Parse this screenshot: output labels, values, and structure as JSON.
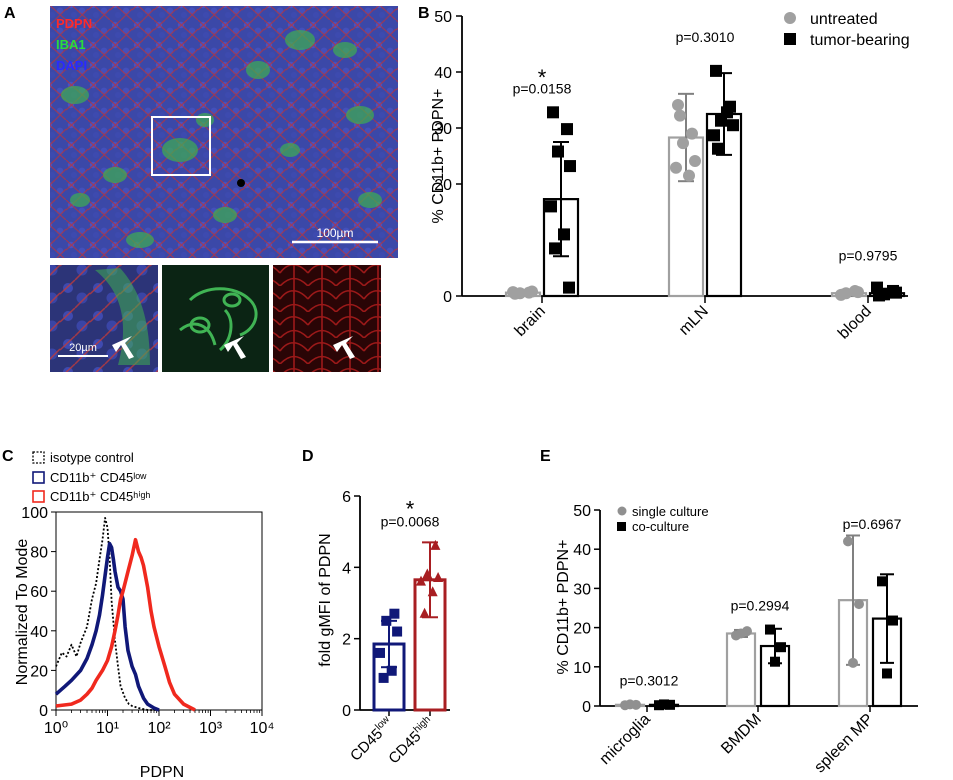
{
  "panels": {
    "A": {
      "letter": "A",
      "legend": [
        {
          "text": "PDPN",
          "color": "#ff2a2a"
        },
        {
          "text": "IBA1",
          "color": "#2bdc3b"
        },
        {
          "text": "DAPI",
          "color": "#2a2aff"
        }
      ],
      "scalebar_main": "100µm",
      "scalebar_inset": "20µm",
      "image_colors": {
        "nuclei": "#3b48a8",
        "membrane": "#b8333a",
        "microglia": "#3fae52",
        "inset_green_bg": "#0b2414",
        "inset_red_bg": "#2a0506"
      }
    },
    "B": {
      "letter": "B"
    },
    "C": {
      "letter": "C"
    },
    "D": {
      "letter": "D"
    },
    "E": {
      "letter": "E"
    }
  },
  "chart_data": [
    {
      "panel": "B",
      "type": "bar",
      "categories": [
        "brain",
        "mLN",
        "blood"
      ],
      "ylabel": "% CD11b+  PDPN+",
      "ylim": [
        0,
        50
      ],
      "yticks": [
        0,
        20,
        30,
        40,
        50
      ],
      "series": [
        {
          "name": "untreated",
          "color": "#a0a0a0",
          "marker": "circle",
          "means": [
            0.6,
            28.3,
            0.5
          ],
          "sd": [
            0.3,
            7.8,
            0.6
          ],
          "points": [
            [
              0.4,
              0.6,
              0.5,
              0.8,
              0.7
            ],
            [
              34.1,
              29.0,
              27.3,
              24.1,
              22.9,
              21.5,
              32.2
            ],
            [
              0.2,
              0.9,
              0.5,
              0.7
            ]
          ]
        },
        {
          "name": "tumor-bearing",
          "color": "#000000",
          "marker": "square",
          "means": [
            17.3,
            32.5,
            0.5
          ],
          "sd": [
            10.2,
            7.3,
            0.8
          ],
          "points": [
            [
              32.8,
              29.8,
              25.8,
              23.2,
              16.0,
              11.0,
              8.5,
              1.5
            ],
            [
              40.2,
              33.8,
              31.3,
              30.5,
              28.7,
              32.8,
              26.3
            ],
            [
              0.1,
              0.9,
              0.3,
              0.6,
              1.5
            ]
          ]
        }
      ],
      "annotations": [
        {
          "text": "*",
          "category": "brain",
          "y": 39.5
        },
        {
          "text": "p=0.0158",
          "category": "brain",
          "y": 36.2
        },
        {
          "text": "p=0.3010",
          "category": "mLN",
          "y": 45.4
        },
        {
          "text": "p=0.9795",
          "category": "blood",
          "y": 6.3
        }
      ]
    },
    {
      "panel": "C",
      "type": "line",
      "xlabel": "PDPN",
      "ylabel": "Normalized To Mode",
      "xscale": "log",
      "xticks": [
        "10⁰",
        "10¹",
        "10²",
        "10³",
        "10⁴"
      ],
      "xlim": [
        1,
        10000
      ],
      "ylim": [
        0,
        100
      ],
      "yticks": [
        0,
        20,
        40,
        60,
        80,
        100
      ],
      "series": [
        {
          "name": "isotype control",
          "color": "#000000",
          "dash": "dotted",
          "x": [
            1,
            1.3,
            1.6,
            2,
            2.5,
            3,
            4,
            5,
            6,
            7,
            8,
            9,
            10,
            11,
            12,
            14,
            16,
            18,
            22,
            26,
            30,
            40,
            60,
            100
          ],
          "y": [
            22,
            29,
            27,
            33,
            27,
            34,
            42,
            56,
            64,
            76,
            86,
            97,
            92,
            77,
            55,
            35,
            22,
            12,
            6,
            3,
            2,
            1,
            0,
            0
          ]
        },
        {
          "name": "CD11b⁺ CD45ˡᵒʷ",
          "color": "#101878",
          "dash": "solid",
          "x": [
            1,
            1.5,
            2,
            3,
            4,
            5,
            6,
            7,
            8,
            9,
            10,
            11,
            12,
            13,
            14,
            16,
            18,
            20,
            22,
            25,
            30,
            35,
            40,
            50,
            60,
            80,
            100
          ],
          "y": [
            8,
            12,
            15,
            20,
            26,
            33,
            40,
            48,
            58,
            68,
            77,
            84,
            82,
            76,
            70,
            62,
            60,
            56,
            42,
            30,
            22,
            18,
            12,
            6,
            3,
            1,
            0
          ]
        },
        {
          "name": "CD11b⁺ CD45ʰⁱᵍʰ",
          "color": "#f0291e",
          "dash": "solid",
          "x": [
            1,
            2,
            3,
            4,
            5,
            6,
            8,
            10,
            12,
            14,
            16,
            18,
            20,
            25,
            30,
            35,
            40,
            45,
            50,
            60,
            70,
            80,
            100,
            130,
            160,
            200,
            300,
            500
          ],
          "y": [
            2,
            3,
            5,
            8,
            11,
            15,
            20,
            25,
            32,
            40,
            48,
            56,
            60,
            70,
            78,
            86,
            80,
            77,
            73,
            62,
            50,
            42,
            32,
            22,
            14,
            8,
            3,
            0
          ]
        }
      ]
    },
    {
      "panel": "D",
      "type": "bar",
      "categories": [
        "CD45low",
        "CD45high"
      ],
      "ylabel": "fold gMFI of PDPN",
      "ylim": [
        0,
        6
      ],
      "yticks": [
        0,
        2,
        4,
        6
      ],
      "series": [
        {
          "name": "",
          "colors": [
            "#101878",
            "#a81e22"
          ],
          "markers": [
            "square",
            "triangle"
          ],
          "means": [
            1.85,
            3.65
          ],
          "sd": [
            0.65,
            1.05
          ],
          "points": [
            [
              2.7,
              2.5,
              2.2,
              1.6,
              1.1,
              0.9
            ],
            [
              4.6,
              3.8,
              3.7,
              3.6,
              3.3,
              2.7
            ]
          ]
        }
      ],
      "annotations": [
        {
          "text": "*",
          "y": 5.7
        },
        {
          "text": "p=0.0068",
          "y": 5.15
        }
      ]
    },
    {
      "panel": "E",
      "type": "bar",
      "categories": [
        "microglia",
        "BMDM",
        "spleen MP"
      ],
      "ylabel": "% CD11b+  PDPN+",
      "ylim": [
        0,
        50
      ],
      "yticks": [
        0,
        10,
        20,
        30,
        40,
        50
      ],
      "series": [
        {
          "name": "single culture",
          "color": "#909090",
          "marker": "circle",
          "means": [
            0.3,
            18.5,
            27.0
          ],
          "sd": [
            0.2,
            0.9,
            16.5
          ],
          "points": [
            [
              0.2,
              0.3,
              0.4
            ],
            [
              18.0,
              19.1,
              18.5
            ],
            [
              42.0,
              26.0,
              11.0
            ]
          ]
        },
        {
          "name": "co-culture",
          "color": "#000000",
          "marker": "square",
          "means": [
            0.3,
            15.3,
            22.3
          ],
          "sd": [
            0.2,
            4.4,
            11.3
          ],
          "points": [
            [
              0.2,
              0.3,
              0.4
            ],
            [
              19.5,
              15.0,
              11.3
            ],
            [
              31.8,
              21.8,
              8.3
            ]
          ]
        }
      ],
      "annotations": [
        {
          "text": "p=0.3012",
          "category": "microglia",
          "y": 5.2
        },
        {
          "text": "p=0.2994",
          "category": "BMDM",
          "y": 24.4
        },
        {
          "text": "p=0.6967",
          "category": "spleen MP",
          "y": 45.2
        }
      ]
    }
  ]
}
